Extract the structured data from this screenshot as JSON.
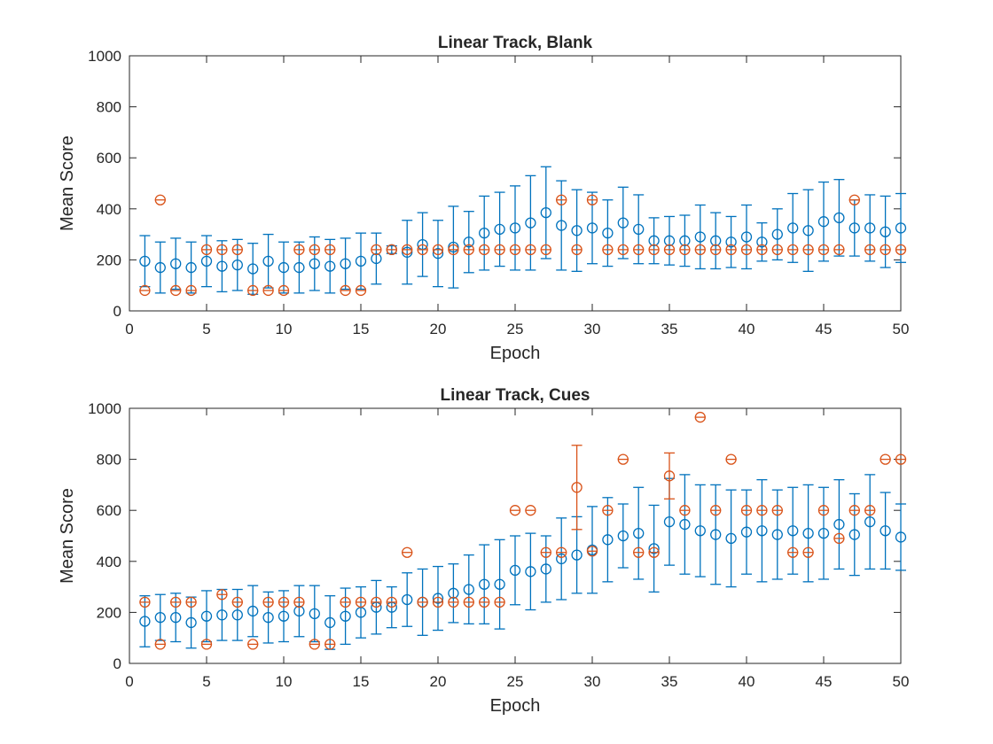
{
  "chart_data": [
    {
      "type": "scatter",
      "title": "Linear Track, Blank",
      "xlabel": "Epoch",
      "ylabel": "Mean Score",
      "xlim": [
        0,
        50
      ],
      "ylim": [
        0,
        1000
      ],
      "xticks": [
        0,
        5,
        10,
        15,
        20,
        25,
        30,
        35,
        40,
        45,
        50
      ],
      "yticks": [
        0,
        200,
        400,
        600,
        800,
        1000
      ],
      "grid": false,
      "series": [
        {
          "color": "#0072BD",
          "marker": "circle-errorbar",
          "x": [
            1,
            2,
            3,
            4,
            5,
            6,
            7,
            8,
            9,
            10,
            11,
            12,
            13,
            14,
            15,
            16,
            17,
            18,
            19,
            20,
            21,
            22,
            23,
            24,
            25,
            26,
            27,
            28,
            29,
            30,
            31,
            32,
            33,
            34,
            35,
            36,
            37,
            38,
            39,
            40,
            41,
            42,
            43,
            44,
            45,
            46,
            47,
            48,
            49,
            50
          ],
          "y": [
            195,
            170,
            185,
            170,
            195,
            175,
            180,
            165,
            195,
            170,
            170,
            185,
            175,
            185,
            195,
            205,
            240,
            230,
            260,
            225,
            250,
            270,
            305,
            320,
            325,
            345,
            385,
            335,
            315,
            325,
            305,
            345,
            320,
            275,
            275,
            275,
            290,
            275,
            270,
            290,
            270,
            300,
            325,
            315,
            350,
            365,
            325,
            325,
            310,
            325
          ],
          "err": [
            100,
            100,
            100,
            100,
            100,
            100,
            100,
            100,
            105,
            100,
            100,
            105,
            105,
            100,
            110,
            100,
            15,
            125,
            125,
            130,
            160,
            120,
            145,
            145,
            165,
            185,
            180,
            175,
            160,
            140,
            130,
            140,
            135,
            90,
            95,
            100,
            125,
            110,
            100,
            125,
            75,
            100,
            135,
            160,
            155,
            150,
            110,
            130,
            140,
            135
          ]
        },
        {
          "color": "#D95319",
          "marker": "circle-errorbar",
          "x": [
            1,
            2,
            3,
            4,
            5,
            6,
            7,
            8,
            9,
            10,
            11,
            12,
            13,
            14,
            15,
            16,
            17,
            18,
            19,
            20,
            21,
            22,
            23,
            24,
            25,
            26,
            27,
            28,
            29,
            30,
            31,
            32,
            33,
            34,
            35,
            36,
            37,
            38,
            39,
            40,
            41,
            42,
            43,
            44,
            45,
            46,
            47,
            48,
            49,
            50
          ],
          "y": [
            80,
            435,
            80,
            80,
            240,
            240,
            240,
            80,
            80,
            80,
            240,
            240,
            240,
            80,
            80,
            240,
            240,
            240,
            240,
            240,
            240,
            240,
            240,
            240,
            240,
            240,
            240,
            435,
            240,
            435,
            240,
            240,
            240,
            240,
            240,
            240,
            240,
            240,
            240,
            240,
            240,
            240,
            240,
            240,
            240,
            240,
            435,
            240,
            240,
            240
          ],
          "err": [
            0,
            0,
            0,
            0,
            0,
            0,
            0,
            0,
            0,
            0,
            0,
            0,
            0,
            0,
            0,
            0,
            0,
            0,
            0,
            0,
            0,
            0,
            0,
            0,
            0,
            0,
            0,
            0,
            0,
            0,
            0,
            0,
            0,
            0,
            0,
            0,
            0,
            0,
            0,
            0,
            0,
            0,
            0,
            0,
            0,
            0,
            0,
            0,
            0,
            0
          ]
        }
      ]
    },
    {
      "type": "scatter",
      "title": "Linear Track, Cues",
      "xlabel": "Epoch",
      "ylabel": "Mean Score",
      "xlim": [
        0,
        50
      ],
      "ylim": [
        0,
        1000
      ],
      "xticks": [
        0,
        5,
        10,
        15,
        20,
        25,
        30,
        35,
        40,
        45,
        50
      ],
      "yticks": [
        0,
        200,
        400,
        600,
        800,
        1000
      ],
      "grid": false,
      "series": [
        {
          "color": "#0072BD",
          "marker": "circle-errorbar",
          "x": [
            1,
            2,
            3,
            4,
            5,
            6,
            7,
            8,
            9,
            10,
            11,
            12,
            13,
            14,
            15,
            16,
            17,
            18,
            19,
            20,
            21,
            22,
            23,
            24,
            25,
            26,
            27,
            28,
            29,
            30,
            31,
            32,
            33,
            34,
            35,
            36,
            37,
            38,
            39,
            40,
            41,
            42,
            43,
            44,
            45,
            46,
            47,
            48,
            49,
            50
          ],
          "y": [
            165,
            180,
            180,
            160,
            185,
            190,
            190,
            205,
            180,
            185,
            205,
            195,
            160,
            185,
            200,
            220,
            220,
            250,
            240,
            255,
            275,
            290,
            310,
            310,
            365,
            360,
            370,
            410,
            425,
            445,
            485,
            500,
            510,
            450,
            555,
            545,
            520,
            505,
            490,
            515,
            520,
            505,
            520,
            510,
            510,
            545,
            505,
            555,
            520,
            495
          ],
          "err": [
            100,
            90,
            95,
            100,
            100,
            100,
            100,
            100,
            100,
            100,
            100,
            110,
            105,
            110,
            100,
            105,
            80,
            105,
            130,
            125,
            115,
            135,
            155,
            175,
            135,
            150,
            130,
            160,
            150,
            170,
            165,
            125,
            180,
            170,
            170,
            195,
            180,
            195,
            190,
            165,
            200,
            175,
            170,
            190,
            180,
            175,
            160,
            185,
            150,
            130
          ]
        },
        {
          "color": "#D95319",
          "marker": "circle-errorbar",
          "x": [
            1,
            2,
            3,
            4,
            5,
            6,
            7,
            8,
            9,
            10,
            11,
            12,
            13,
            14,
            15,
            16,
            17,
            18,
            19,
            20,
            21,
            22,
            23,
            24,
            25,
            26,
            27,
            28,
            29,
            30,
            31,
            32,
            33,
            34,
            35,
            36,
            37,
            38,
            39,
            40,
            41,
            42,
            43,
            44,
            45,
            46,
            47,
            48,
            49,
            50
          ],
          "y": [
            240,
            75,
            240,
            240,
            75,
            270,
            240,
            75,
            240,
            240,
            240,
            75,
            75,
            240,
            240,
            240,
            240,
            435,
            240,
            240,
            240,
            240,
            240,
            240,
            600,
            600,
            435,
            435,
            690,
            440,
            600,
            800,
            435,
            435,
            735,
            600,
            965,
            600,
            800,
            600,
            600,
            600,
            435,
            435,
            600,
            490,
            600,
            600,
            800,
            800
          ],
          "err": [
            0,
            0,
            0,
            0,
            0,
            0,
            0,
            0,
            0,
            0,
            0,
            0,
            0,
            0,
            0,
            0,
            0,
            0,
            0,
            0,
            0,
            0,
            0,
            0,
            0,
            0,
            0,
            0,
            165,
            0,
            0,
            0,
            0,
            0,
            90,
            0,
            0,
            0,
            0,
            0,
            0,
            0,
            0,
            0,
            0,
            0,
            0,
            0,
            0,
            0
          ]
        }
      ]
    }
  ]
}
